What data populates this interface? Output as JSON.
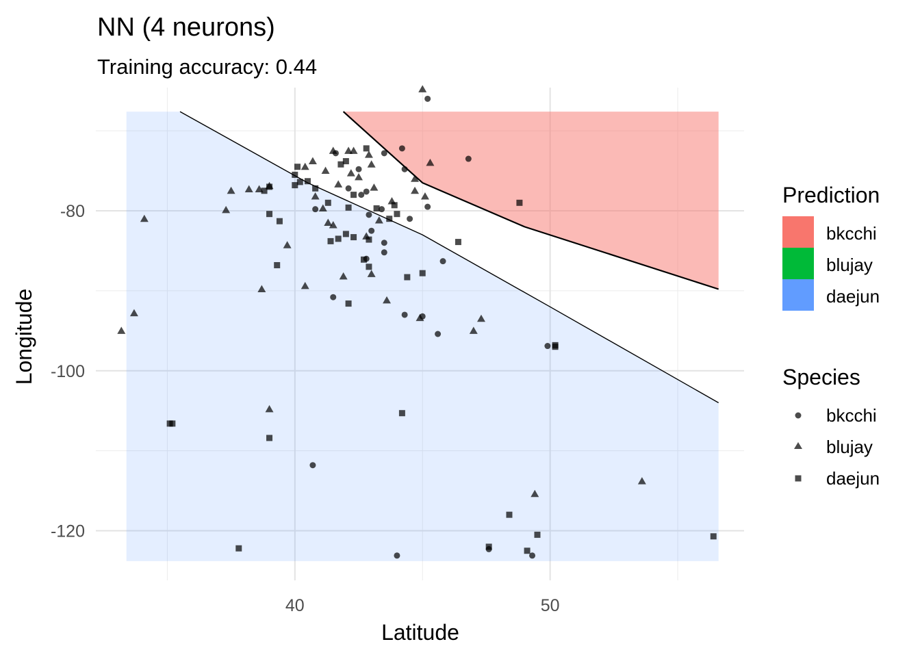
{
  "chart_data": {
    "type": "scatter",
    "title": "NN (4 neurons)",
    "subtitle": "Training accuracy: 0.44",
    "xlabel": "Latitude",
    "ylabel": "Longitude",
    "xlim": [
      32.2,
      57.6
    ],
    "ylim": [
      -126.2,
      -64.6
    ],
    "x_ticks": [
      40,
      50
    ],
    "y_ticks": [
      -80,
      -100,
      -120
    ],
    "grid": true,
    "legend_position": "right",
    "colors": {
      "bkcchi": "#F8766D",
      "blujay": "#00BA38",
      "daejun": "#619CFF"
    },
    "prediction_legend": {
      "title": "Prediction",
      "entries": [
        "bkcchi",
        "blujay",
        "daejun"
      ]
    },
    "species_legend": {
      "title": "Species",
      "entries": [
        {
          "label": "bkcchi",
          "shape": "circle"
        },
        {
          "label": "blujay",
          "shape": "triangle"
        },
        {
          "label": "daejun",
          "shape": "square"
        }
      ]
    },
    "regions": [
      {
        "class": "daejun",
        "polygon": [
          [
            33.4,
            -67.6
          ],
          [
            35.5,
            -67.6
          ],
          [
            40.5,
            -76.5
          ],
          [
            45.0,
            -83.0
          ],
          [
            50.0,
            -92.0
          ],
          [
            56.6,
            -104.0
          ],
          [
            56.6,
            -123.8
          ],
          [
            33.4,
            -123.8
          ]
        ]
      },
      {
        "class": "bkcchi",
        "polygon": [
          [
            41.9,
            -67.6
          ],
          [
            56.6,
            -67.6
          ],
          [
            56.6,
            -89.8
          ],
          [
            49.0,
            -82.0
          ],
          [
            45.0,
            -76.5
          ]
        ]
      }
    ],
    "boundaries": [
      [
        [
          35.5,
          -67.6
        ],
        [
          40.5,
          -76.5
        ],
        [
          45.0,
          -83.0
        ],
        [
          50.0,
          -92.0
        ],
        [
          56.6,
          -104.0
        ]
      ],
      [
        [
          41.9,
          -67.6
        ],
        [
          45.0,
          -76.5
        ],
        [
          49.0,
          -82.0
        ],
        [
          56.6,
          -89.8
        ]
      ]
    ],
    "series": [
      {
        "name": "bkcchi",
        "shape": "circle",
        "points": [
          [
            45.2,
            -66.0
          ],
          [
            46.8,
            -73.5
          ],
          [
            41.6,
            -72.8
          ],
          [
            43.5,
            -72.8
          ],
          [
            44.3,
            -74.8
          ],
          [
            44.2,
            -72.2
          ],
          [
            42.5,
            -74.8
          ],
          [
            42.8,
            -77.6
          ],
          [
            42.1,
            -77.2
          ],
          [
            42.6,
            -78.0
          ],
          [
            43.4,
            -79.8
          ],
          [
            42.9,
            -80.5
          ],
          [
            44.5,
            -81.0
          ],
          [
            45.2,
            -79.5
          ],
          [
            40.8,
            -79.8
          ],
          [
            43.0,
            -82.5
          ],
          [
            43.5,
            -84.0
          ],
          [
            43.5,
            -85.2
          ],
          [
            42.8,
            -86.0
          ],
          [
            45.8,
            -86.3
          ],
          [
            41.5,
            -90.8
          ],
          [
            44.3,
            -93.0
          ],
          [
            45.0,
            -93.2
          ],
          [
            45.6,
            -95.4
          ],
          [
            49.9,
            -96.9
          ],
          [
            40.7,
            -111.8
          ],
          [
            47.6,
            -122.3
          ],
          [
            44.0,
            -123.1
          ],
          [
            49.3,
            -123.1
          ]
        ]
      },
      {
        "name": "blujay",
        "shape": "triangle",
        "points": [
          [
            45.0,
            -64.8
          ],
          [
            45.3,
            -74.0
          ],
          [
            44.7,
            -76.0
          ],
          [
            42.3,
            -72.5
          ],
          [
            41.5,
            -72.5
          ],
          [
            42.1,
            -72.5
          ],
          [
            42.9,
            -73.0
          ],
          [
            42.2,
            -75.3
          ],
          [
            42.5,
            -75.8
          ],
          [
            43.0,
            -74.2
          ],
          [
            40.7,
            -73.8
          ],
          [
            41.2,
            -75.0
          ],
          [
            43.1,
            -77.1
          ],
          [
            44.7,
            -77.5
          ],
          [
            45.1,
            -78.2
          ],
          [
            43.8,
            -78.8
          ],
          [
            40.4,
            -74.5
          ],
          [
            41.7,
            -76.7
          ],
          [
            37.5,
            -77.5
          ],
          [
            38.2,
            -77.3
          ],
          [
            38.6,
            -77.3
          ],
          [
            39.0,
            -76.9
          ],
          [
            40.8,
            -78.2
          ],
          [
            41.1,
            -79.7
          ],
          [
            37.3,
            -79.9
          ],
          [
            34.1,
            -81.0
          ],
          [
            39.7,
            -84.3
          ],
          [
            40.4,
            -89.4
          ],
          [
            41.3,
            -81.5
          ],
          [
            41.5,
            -81.8
          ],
          [
            43.3,
            -81.2
          ],
          [
            42.8,
            -83.2
          ],
          [
            43.0,
            -87.9
          ],
          [
            41.9,
            -88.2
          ],
          [
            43.6,
            -91.2
          ],
          [
            38.7,
            -89.8
          ],
          [
            44.9,
            -93.4
          ],
          [
            33.7,
            -92.8
          ],
          [
            33.2,
            -95.0
          ],
          [
            47.3,
            -93.5
          ],
          [
            47.0,
            -95.0
          ],
          [
            39.0,
            -104.8
          ],
          [
            49.4,
            -115.4
          ],
          [
            53.6,
            -113.8
          ]
        ]
      },
      {
        "name": "daejun",
        "shape": "square",
        "points": [
          [
            42.8,
            -72.2
          ],
          [
            42.0,
            -73.8
          ],
          [
            41.8,
            -74.2
          ],
          [
            40.1,
            -74.5
          ],
          [
            40.0,
            -75.5
          ],
          [
            40.2,
            -76.4
          ],
          [
            40.5,
            -76.3
          ],
          [
            40.0,
            -76.8
          ],
          [
            39.0,
            -77.0
          ],
          [
            38.8,
            -77.5
          ],
          [
            41.3,
            -79.0
          ],
          [
            40.8,
            -77.2
          ],
          [
            42.1,
            -79.6
          ],
          [
            43.9,
            -79.3
          ],
          [
            44.0,
            -80.4
          ],
          [
            42.3,
            -78.0
          ],
          [
            43.2,
            -79.7
          ],
          [
            43.7,
            -81.0
          ],
          [
            42.0,
            -82.9
          ],
          [
            41.7,
            -83.5
          ],
          [
            41.4,
            -83.8
          ],
          [
            42.3,
            -83.3
          ],
          [
            42.9,
            -83.6
          ],
          [
            42.7,
            -86.1
          ],
          [
            42.9,
            -87.0
          ],
          [
            44.4,
            -88.3
          ],
          [
            45.0,
            -87.8
          ],
          [
            46.4,
            -83.9
          ],
          [
            48.8,
            -79.0
          ],
          [
            39.0,
            -80.4
          ],
          [
            39.4,
            -81.3
          ],
          [
            39.3,
            -86.8
          ],
          [
            42.1,
            -91.6
          ],
          [
            35.1,
            -106.6
          ],
          [
            35.2,
            -106.6
          ],
          [
            39.0,
            -108.4
          ],
          [
            44.2,
            -105.3
          ],
          [
            50.2,
            -97.0
          ],
          [
            37.8,
            -122.2
          ],
          [
            47.6,
            -122.0
          ],
          [
            48.4,
            -118.0
          ],
          [
            49.5,
            -120.5
          ],
          [
            49.1,
            -122.5
          ],
          [
            56.4,
            -120.7
          ],
          [
            50.2,
            -96.8
          ]
        ]
      }
    ]
  }
}
